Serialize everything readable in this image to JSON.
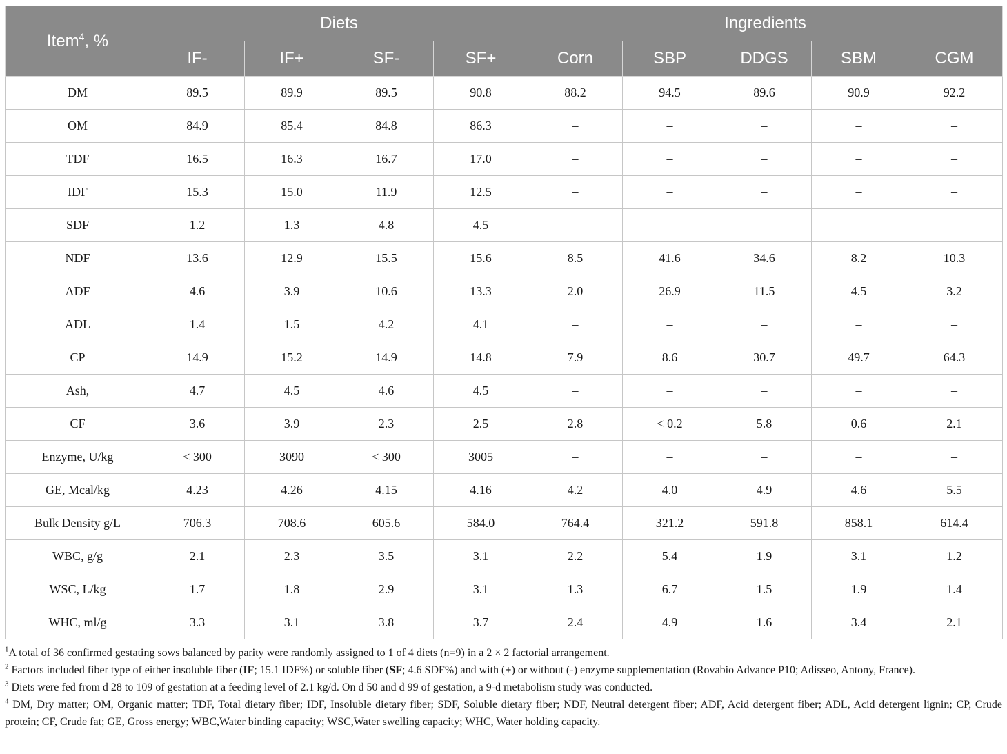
{
  "header": {
    "item_label": "Item",
    "item_sup": "4",
    "item_suffix": ", %",
    "group_diets": "Diets",
    "group_ingredients": "Ingredients",
    "columns": [
      "IF-",
      "IF+",
      "SF-",
      "SF+",
      "Corn",
      "SBP",
      "DDGS",
      "SBM",
      "CGM"
    ]
  },
  "rows": [
    {
      "label": "DM",
      "values": [
        "89.5",
        "89.9",
        "89.5",
        "90.8",
        "88.2",
        "94.5",
        "89.6",
        "90.9",
        "92.2"
      ]
    },
    {
      "label": "OM",
      "values": [
        "84.9",
        "85.4",
        "84.8",
        "86.3",
        "–",
        "–",
        "–",
        "–",
        "–"
      ]
    },
    {
      "label": "TDF",
      "values": [
        "16.5",
        "16.3",
        "16.7",
        "17.0",
        "–",
        "–",
        "–",
        "–",
        "–"
      ]
    },
    {
      "label": "IDF",
      "values": [
        "15.3",
        "15.0",
        "11.9",
        "12.5",
        "–",
        "–",
        "–",
        "–",
        "–"
      ]
    },
    {
      "label": "SDF",
      "values": [
        "1.2",
        "1.3",
        "4.8",
        "4.5",
        "–",
        "–",
        "–",
        "–",
        "–"
      ]
    },
    {
      "label": "NDF",
      "values": [
        "13.6",
        "12.9",
        "15.5",
        "15.6",
        "8.5",
        "41.6",
        "34.6",
        "8.2",
        "10.3"
      ]
    },
    {
      "label": "ADF",
      "values": [
        "4.6",
        "3.9",
        "10.6",
        "13.3",
        "2.0",
        "26.9",
        "11.5",
        "4.5",
        "3.2"
      ]
    },
    {
      "label": "ADL",
      "values": [
        "1.4",
        "1.5",
        "4.2",
        "4.1",
        "–",
        "–",
        "–",
        "–",
        "–"
      ]
    },
    {
      "label": "CP",
      "values": [
        "14.9",
        "15.2",
        "14.9",
        "14.8",
        "7.9",
        "8.6",
        "30.7",
        "49.7",
        "64.3"
      ]
    },
    {
      "label": "Ash,",
      "values": [
        "4.7",
        "4.5",
        "4.6",
        "4.5",
        "–",
        "–",
        "–",
        "–",
        "–"
      ]
    },
    {
      "label": "CF",
      "values": [
        "3.6",
        "3.9",
        "2.3",
        "2.5",
        "2.8",
        "< 0.2",
        "5.8",
        "0.6",
        "2.1"
      ]
    },
    {
      "label": "Enzyme, U/kg",
      "values": [
        "< 300",
        "3090",
        "< 300",
        "3005",
        "–",
        "–",
        "–",
        "–",
        "–"
      ]
    },
    {
      "label": "GE, Mcal/kg",
      "values": [
        "4.23",
        "4.26",
        "4.15",
        "4.16",
        "4.2",
        "4.0",
        "4.9",
        "4.6",
        "5.5"
      ]
    },
    {
      "label": "Bulk Density g/L",
      "values": [
        "706.3",
        "708.6",
        "605.6",
        "584.0",
        "764.4",
        "321.2",
        "591.8",
        "858.1",
        "614.4"
      ]
    },
    {
      "label": "WBC, g/g",
      "values": [
        "2.1",
        "2.3",
        "3.5",
        "3.1",
        "2.2",
        "5.4",
        "1.9",
        "3.1",
        "1.2"
      ]
    },
    {
      "label": "WSC, L/kg",
      "values": [
        "1.7",
        "1.8",
        "2.9",
        "3.1",
        "1.3",
        "6.7",
        "1.5",
        "1.9",
        "1.4"
      ]
    },
    {
      "label": "WHC, ml/g",
      "values": [
        "3.3",
        "3.1",
        "3.8",
        "3.7",
        "2.4",
        "4.9",
        "1.6",
        "3.4",
        "2.1"
      ]
    }
  ],
  "footnotes": {
    "n1": {
      "sup": "1",
      "text": "A total of 36 confirmed gestating sows balanced by parity were randomly assigned to 1 of 4 diets (n=9) in a 2 × 2 factorial arrangement."
    },
    "n2": {
      "sup": "2",
      "t1": " Factors included fiber type of either insoluble fiber (",
      "b1": "IF",
      "t2": "; 15.1 IDF%) or soluble fiber (",
      "b2": "SF",
      "t3": "; 4.6 SDF%) and with (",
      "b3": "+",
      "t4": ") or without (-) enzyme supplementation (Rovabio Advance P10; Adisseo, Antony, France)."
    },
    "n3": {
      "sup": "3",
      "text": " Diets were fed from d 28 to 109 of gestation at a feeding level of 2.1 kg/d. On d 50 and d 99 of gestation, a 9-d metabolism study was conducted."
    },
    "n4": {
      "sup": "4",
      "text": " DM, Dry matter; OM, Organic matter; TDF, Total dietary fiber; IDF, Insoluble dietary fiber; SDF, Soluble dietary fiber; NDF, Neutral detergent fiber; ADF, Acid detergent fiber; ADL, Acid detergent lignin; CP, Crude protein; CF, Crude fat; GE, Gross energy; WBC,Water binding capacity; WSC,Water swelling capacity; WHC, Water holding capacity."
    }
  }
}
